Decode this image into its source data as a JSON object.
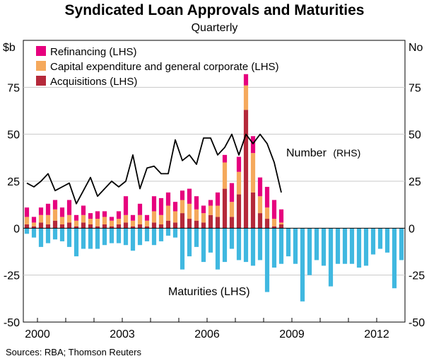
{
  "chart_data": {
    "type": "bar",
    "title": "Syndicated Loan Approvals and Maturities",
    "subtitle": "Quarterly",
    "left_axis_unit": "$b",
    "right_axis_unit": "No",
    "ylim_left": [
      -50,
      100
    ],
    "ylim_right": [
      -50,
      100
    ],
    "y_ticks": [
      -50,
      -25,
      0,
      25,
      50,
      75
    ],
    "x_ticks": [
      "2000",
      "2003",
      "2006",
      "2009",
      "2012"
    ],
    "x_range": [
      "1999Q3",
      "2012Q4"
    ],
    "legend_position": "top-left",
    "grid": true,
    "periods": [
      "1999Q3",
      "1999Q4",
      "2000Q1",
      "2000Q2",
      "2000Q3",
      "2000Q4",
      "2001Q1",
      "2001Q2",
      "2001Q3",
      "2001Q4",
      "2002Q1",
      "2002Q2",
      "2002Q3",
      "2002Q4",
      "2003Q1",
      "2003Q2",
      "2003Q3",
      "2003Q4",
      "2004Q1",
      "2004Q2",
      "2004Q3",
      "2004Q4",
      "2005Q1",
      "2005Q2",
      "2005Q3",
      "2005Q4",
      "2006Q1",
      "2006Q2",
      "2006Q3",
      "2006Q4",
      "2007Q1",
      "2007Q2",
      "2007Q3",
      "2007Q4",
      "2008Q1",
      "2008Q2",
      "2008Q3",
      "2008Q4",
      "2009Q1",
      "2009Q2",
      "2009Q3",
      "2009Q4",
      "2010Q1",
      "2010Q2",
      "2010Q3",
      "2010Q4",
      "2011Q1",
      "2011Q2",
      "2011Q3",
      "2011Q4",
      "2012Q1",
      "2012Q2",
      "2012Q3",
      "2012Q4"
    ],
    "series": [
      {
        "name": "Acquisitions (LHS)",
        "color": "#b5293a",
        "axis": "left",
        "stack": "approvals",
        "values": [
          2,
          1,
          3,
          2,
          4,
          2,
          3,
          1,
          3,
          2,
          1,
          2,
          1,
          2,
          3,
          1,
          2,
          1,
          3,
          2,
          4,
          3,
          8,
          5,
          4,
          3,
          7,
          6,
          21,
          6,
          18,
          63,
          19,
          8,
          5,
          1,
          2,
          0,
          0,
          0,
          0,
          0,
          0,
          0,
          0,
          0,
          0,
          0,
          0,
          0,
          0,
          0,
          0,
          0
        ]
      },
      {
        "name": "Capital expenditure and general corporate (LHS)",
        "color": "#f5a95c",
        "axis": "left",
        "stack": "approvals",
        "values": [
          4,
          2,
          4,
          5,
          6,
          4,
          4,
          3,
          4,
          3,
          4,
          4,
          3,
          3,
          4,
          3,
          5,
          3,
          6,
          5,
          8,
          6,
          7,
          8,
          6,
          5,
          5,
          6,
          14,
          8,
          12,
          13,
          21,
          9,
          6,
          4,
          1,
          0,
          0,
          0,
          0,
          0,
          0,
          0,
          0,
          0,
          0,
          0,
          0,
          0,
          0,
          0,
          0,
          0
        ]
      },
      {
        "name": "Refinancing (LHS)",
        "color": "#e6007e",
        "axis": "left",
        "stack": "approvals",
        "values": [
          5,
          3,
          4,
          6,
          5,
          5,
          8,
          3,
          5,
          3,
          4,
          3,
          2,
          4,
          10,
          3,
          6,
          3,
          8,
          9,
          7,
          5,
          5,
          8,
          7,
          4,
          3,
          7,
          4,
          10,
          8,
          6,
          9,
          10,
          11,
          10,
          7,
          0,
          0,
          0,
          0,
          0,
          0,
          0,
          0,
          0,
          0,
          0,
          0,
          0,
          0,
          0,
          0,
          0
        ]
      },
      {
        "name": "Maturities (LHS)",
        "color": "#40b8e0",
        "axis": "left",
        "stack": "maturities",
        "values": [
          -3,
          -5,
          -10,
          -8,
          -6,
          -7,
          -10,
          -15,
          -11,
          -11,
          -11,
          -9,
          -8,
          -8,
          -9,
          -12,
          -9,
          -7,
          -9,
          -7,
          -4,
          -5,
          -22,
          -15,
          -10,
          -18,
          -13,
          -22,
          -18,
          -11,
          -17,
          -18,
          -20,
          -17,
          -34,
          -21,
          -19,
          -15,
          -19,
          -39,
          -25,
          -17,
          -20,
          -31,
          -19,
          -19,
          -19,
          -21,
          -20,
          -14,
          -11,
          -13,
          -32,
          -17
        ]
      },
      {
        "name": "Number (RHS)",
        "color": "#000000",
        "axis": "right",
        "type": "line",
        "values": [
          24,
          22,
          25,
          29,
          20,
          22,
          24,
          13,
          20,
          27,
          17,
          21,
          25,
          22,
          25,
          39,
          21,
          32,
          33,
          29,
          29,
          47,
          36,
          39,
          34,
          48,
          48,
          39,
          43,
          50,
          39,
          50,
          45,
          50,
          45,
          35,
          19
        ]
      }
    ],
    "legend": [
      "Refinancing (LHS)",
      "Capital expenditure and general corporate (LHS)",
      "Acquisitions (LHS)"
    ],
    "annotations": {
      "number_label": "Number",
      "number_suffix": "(RHS)",
      "maturities_label": "Maturities (LHS)"
    },
    "source": "Sources: RBA; Thomson Reuters"
  }
}
